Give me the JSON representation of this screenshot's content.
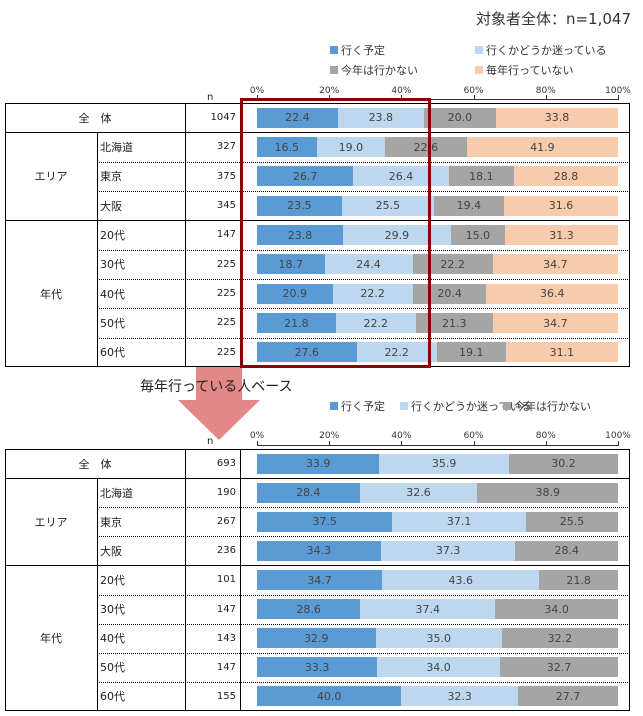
{
  "title": "対象者全体：n=1,047",
  "n_label": "n",
  "subtitle_bottom": "毎年行っている人ベース",
  "colors": {
    "s1": "#5b9bd5",
    "s2": "#bdd7ee",
    "s3": "#a5a5a5",
    "s4": "#f8cbad",
    "box": "#8b0000",
    "arrow": "#e07b7b"
  },
  "chart_data": [
    {
      "type": "bar",
      "stacked": true,
      "orientation": "horizontal",
      "xlim": [
        0,
        100
      ],
      "ticks": [
        "0%",
        "20%",
        "40%",
        "60%",
        "80%",
        "100%"
      ],
      "legend": [
        "行く予定",
        "行くかどうか迷っている",
        "今年は行かない",
        "毎年行っていない"
      ],
      "rows": [
        {
          "group": "全　体",
          "label": "",
          "n": "1047",
          "values": [
            22.4,
            23.8,
            20.0,
            33.8
          ]
        },
        {
          "group": "エリア",
          "label": "北海道",
          "n": "327",
          "values": [
            16.5,
            19.0,
            22.6,
            41.9
          ]
        },
        {
          "group": "エリア",
          "label": "東京",
          "n": "375",
          "values": [
            26.7,
            26.4,
            18.1,
            28.8
          ]
        },
        {
          "group": "エリア",
          "label": "大阪",
          "n": "345",
          "values": [
            23.5,
            25.5,
            19.4,
            31.6
          ]
        },
        {
          "group": "年代",
          "label": "20代",
          "n": "147",
          "values": [
            23.8,
            29.9,
            15.0,
            31.3
          ]
        },
        {
          "group": "年代",
          "label": "30代",
          "n": "225",
          "values": [
            18.7,
            24.4,
            22.2,
            34.7
          ]
        },
        {
          "group": "年代",
          "label": "40代",
          "n": "225",
          "values": [
            20.9,
            22.2,
            20.4,
            36.4
          ]
        },
        {
          "group": "年代",
          "label": "50代",
          "n": "225",
          "values": [
            21.8,
            22.2,
            21.3,
            34.7
          ]
        },
        {
          "group": "年代",
          "label": "60代",
          "n": "225",
          "values": [
            27.6,
            22.2,
            19.1,
            31.1
          ]
        }
      ]
    },
    {
      "type": "bar",
      "stacked": true,
      "orientation": "horizontal",
      "xlim": [
        0,
        100
      ],
      "ticks": [
        "0%",
        "20%",
        "40%",
        "60%",
        "80%",
        "100%"
      ],
      "legend": [
        "行く予定",
        "行くかどうか迷っている",
        "今年は行かない"
      ],
      "rows": [
        {
          "group": "全　体",
          "label": "",
          "n": "693",
          "values": [
            33.9,
            35.9,
            30.2
          ]
        },
        {
          "group": "エリア",
          "label": "北海道",
          "n": "190",
          "values": [
            28.4,
            32.6,
            38.9
          ]
        },
        {
          "group": "エリア",
          "label": "東京",
          "n": "267",
          "values": [
            37.5,
            37.1,
            25.5
          ]
        },
        {
          "group": "エリア",
          "label": "大阪",
          "n": "236",
          "values": [
            34.3,
            37.3,
            28.4
          ]
        },
        {
          "group": "年代",
          "label": "20代",
          "n": "101",
          "values": [
            34.7,
            43.6,
            21.8
          ]
        },
        {
          "group": "年代",
          "label": "30代",
          "n": "147",
          "values": [
            28.6,
            37.4,
            34.0
          ]
        },
        {
          "group": "年代",
          "label": "40代",
          "n": "143",
          "values": [
            32.9,
            35.0,
            32.2
          ]
        },
        {
          "group": "年代",
          "label": "50代",
          "n": "147",
          "values": [
            33.3,
            34.0,
            32.7
          ]
        },
        {
          "group": "年代",
          "label": "60代",
          "n": "155",
          "values": [
            40.0,
            32.3,
            27.7
          ]
        }
      ]
    }
  ]
}
